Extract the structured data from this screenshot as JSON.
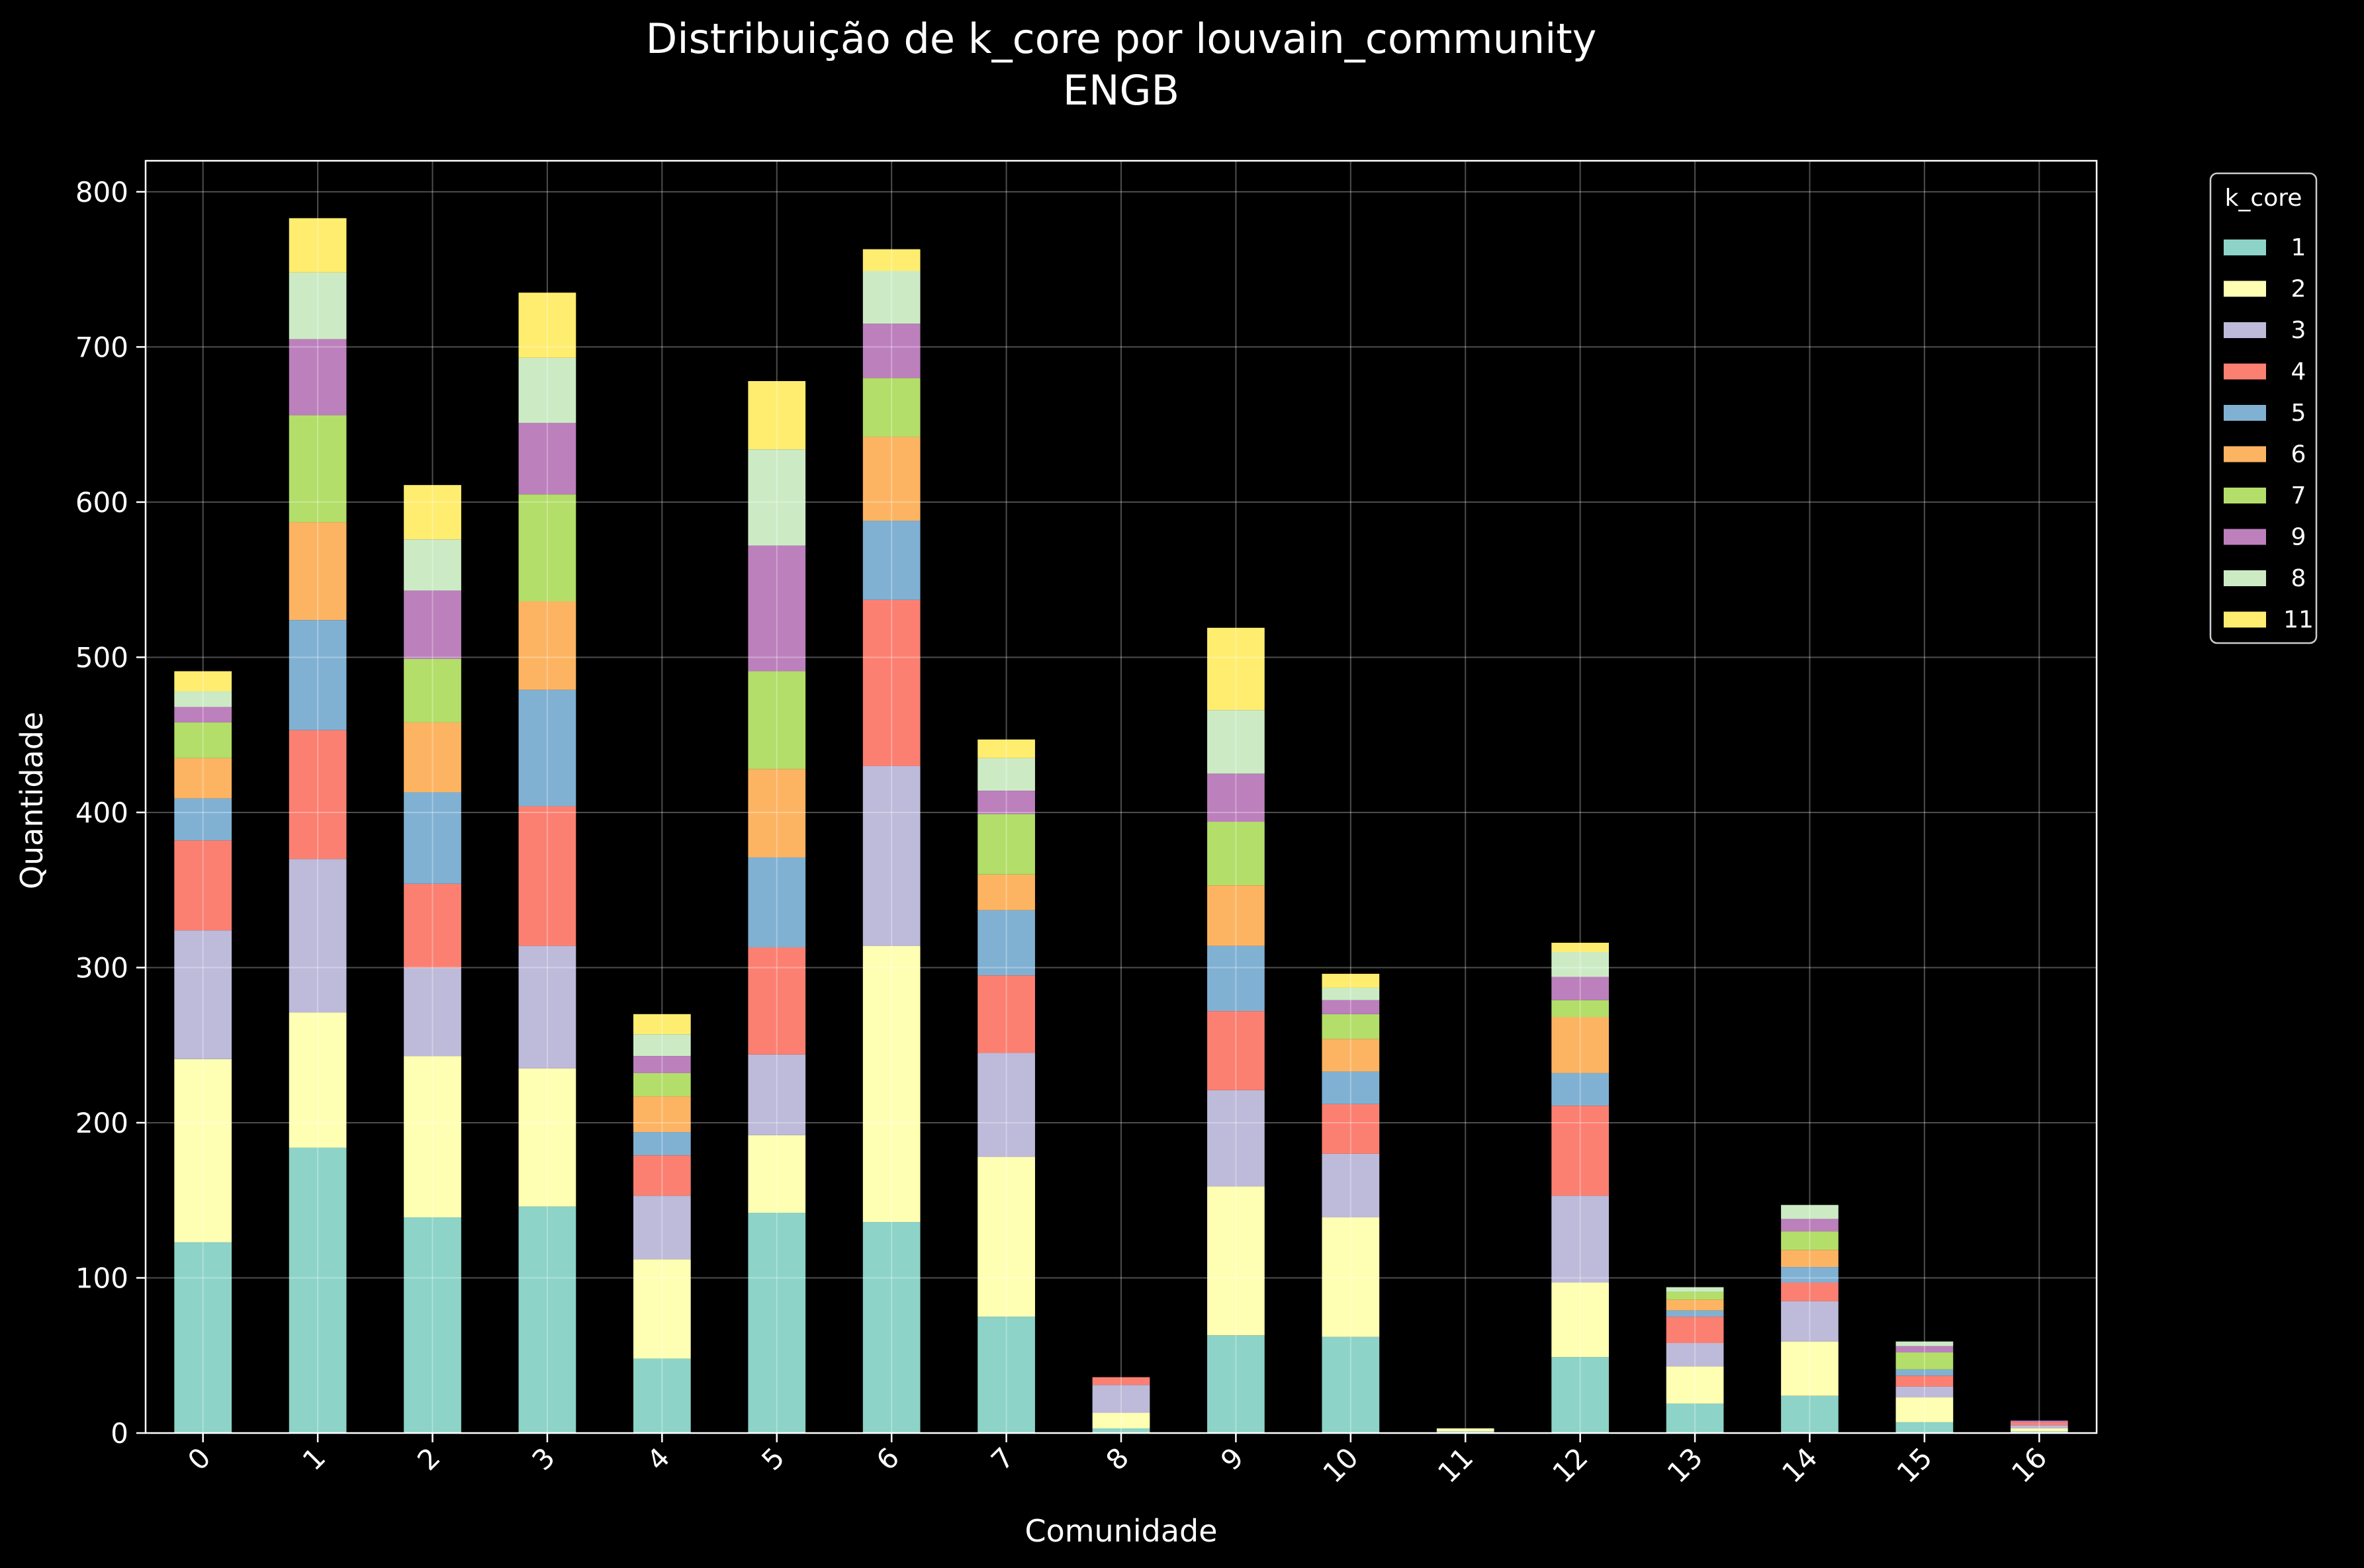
{
  "chart_data": {
    "type": "bar",
    "stacked": true,
    "title": "Distribuição de k_core por louvain_community",
    "subtitle": "ENGB",
    "xlabel": "Comunidade",
    "ylabel": "Quantidade",
    "ylim": [
      0,
      820
    ],
    "yticks": [
      0,
      100,
      200,
      300,
      400,
      500,
      600,
      700,
      800
    ],
    "grid": true,
    "categories": [
      "0",
      "1",
      "2",
      "3",
      "4",
      "5",
      "6",
      "7",
      "8",
      "9",
      "10",
      "11",
      "12",
      "13",
      "14",
      "15",
      "16"
    ],
    "legend": {
      "title": "k_core",
      "placement": "outside-top-right"
    },
    "series": [
      {
        "name": "1",
        "color": "#8dd3c7",
        "values": [
          123,
          184,
          139,
          146,
          48,
          142,
          136,
          75,
          3,
          63,
          62,
          1,
          49,
          19,
          24,
          7,
          1
        ]
      },
      {
        "name": "2",
        "color": "#ffffb3",
        "values": [
          118,
          87,
          104,
          89,
          64,
          50,
          178,
          103,
          10,
          96,
          77,
          2,
          48,
          24,
          35,
          16,
          2
        ]
      },
      {
        "name": "3",
        "color": "#bebada",
        "values": [
          83,
          99,
          57,
          79,
          41,
          52,
          116,
          67,
          18,
          62,
          41,
          0,
          56,
          15,
          26,
          7,
          2
        ]
      },
      {
        "name": "4",
        "color": "#fb8072",
        "values": [
          58,
          83,
          54,
          90,
          26,
          69,
          107,
          50,
          5,
          51,
          32,
          0,
          58,
          17,
          12,
          7,
          2
        ]
      },
      {
        "name": "5",
        "color": "#80b1d3",
        "values": [
          27,
          71,
          59,
          75,
          15,
          58,
          51,
          42,
          0,
          42,
          21,
          0,
          21,
          4,
          10,
          4,
          0
        ]
      },
      {
        "name": "6",
        "color": "#fdb462",
        "values": [
          26,
          63,
          45,
          57,
          23,
          57,
          54,
          23,
          0,
          39,
          21,
          0,
          36,
          7,
          11,
          0,
          0
        ]
      },
      {
        "name": "7",
        "color": "#b3de69",
        "values": [
          23,
          69,
          41,
          69,
          15,
          63,
          38,
          39,
          0,
          41,
          16,
          0,
          11,
          5,
          12,
          11,
          0
        ]
      },
      {
        "name": "9",
        "color": "#bc80bd",
        "values": [
          10,
          49,
          44,
          46,
          11,
          81,
          35,
          15,
          0,
          31,
          9,
          0,
          15,
          0,
          8,
          4,
          1
        ]
      },
      {
        "name": "8",
        "color": "#ccebc5",
        "values": [
          10,
          43,
          33,
          42,
          14,
          62,
          34,
          21,
          0,
          41,
          8,
          0,
          16,
          3,
          9,
          3,
          0
        ]
      },
      {
        "name": "11",
        "color": "#ffed6f",
        "values": [
          13,
          35,
          35,
          42,
          13,
          44,
          14,
          12,
          0,
          53,
          9,
          0,
          6,
          0,
          0,
          0,
          0
        ]
      }
    ]
  }
}
